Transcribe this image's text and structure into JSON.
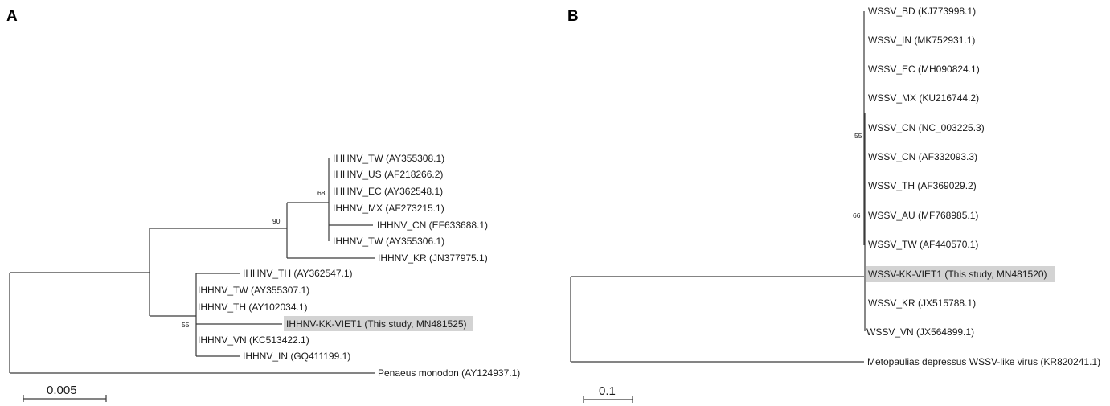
{
  "panels": [
    {
      "letter": "A",
      "leaves": [
        "IHHNV_TW (AY355308.1)",
        "IHHNV_US (AF218266.2)",
        "IHHNV_EC (AY362548.1)",
        "IHHNV_MX (AF273215.1)",
        "IHHNV_CN (EF633688.1)",
        "IHHNV_TW (AY355306.1)",
        "IHHNV_KR (JN377975.1)",
        "IHHNV_TH (AY362547.1)",
        "IHHNV_TW (AY355307.1)",
        "IHHNV_TH (AY102034.1)",
        "IHHNV-KK-VIET1 (This study, MN481525)",
        "IHHNV_VN (KC513422.1)",
        "IHHNV_IN (GQ411199.1)",
        "Penaeus monodon (AY124937.1)"
      ],
      "highlighted_leaf": "IHHNV-KK-VIET1 (This study, MN481525)",
      "bootstrap": [
        "68",
        "90",
        "55"
      ],
      "scale_bar": "0.005"
    },
    {
      "letter": "B",
      "leaves": [
        "WSSV_BD (KJ773998.1)",
        "WSSV_IN (MK752931.1)",
        "WSSV_EC (MH090824.1)",
        "WSSV_MX (KU216744.2)",
        "WSSV_CN (NC_003225.3)",
        "WSSV_CN (AF332093.3)",
        "WSSV_TH (AF369029.2)",
        "WSSV_AU (MF768985.1)",
        "WSSV_TW (AF440570.1)",
        "WSSV-KK-VIET1 (This study, MN481520)",
        "WSSV_KR (JX515788.1)",
        "WSSV_VN (JX564899.1)",
        "Metopaulias depressus WSSV-like virus (KR820241.1)"
      ],
      "highlighted_leaf": "WSSV-KK-VIET1 (This study, MN481520)",
      "bootstrap": [
        "55",
        "66"
      ],
      "scale_bar": "0.1"
    }
  ],
  "colors": {
    "highlight": "#d3d3d3",
    "branch": "#3a3a3a",
    "text": "#1a1a1a"
  }
}
